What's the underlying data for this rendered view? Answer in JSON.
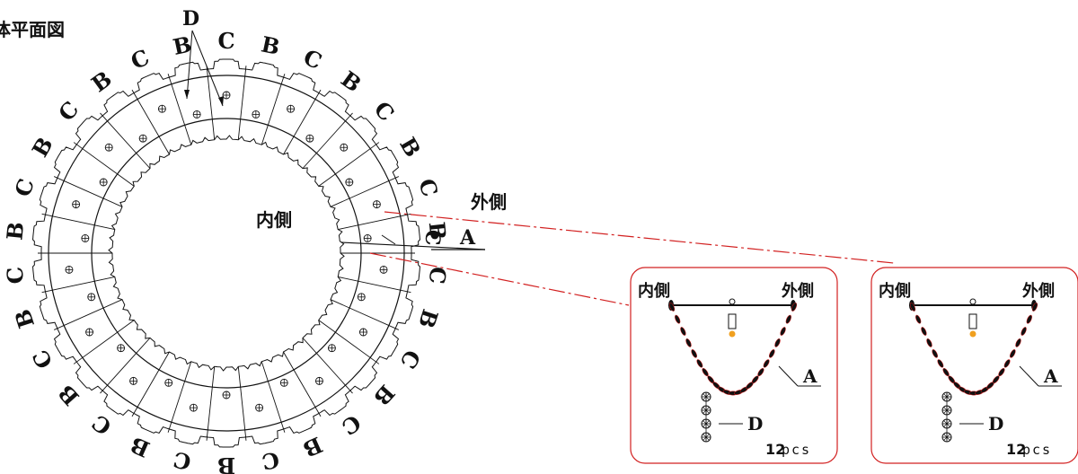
{
  "title": "体平面図",
  "center_label": "内側",
  "outer_label": "外側",
  "ring_labels": [
    "B",
    "C",
    "B",
    "C",
    "B",
    "C",
    "B",
    "C",
    "B",
    "C",
    "B",
    "C",
    "B",
    "C",
    "B",
    "C",
    "B",
    "C",
    "B",
    "C",
    "B",
    "C",
    "B",
    "C",
    "B",
    "C",
    "B",
    "C",
    "B",
    "C"
  ],
  "callout_A": "A",
  "callout_C": "C",
  "callout_D": "D",
  "callout_D_top": "D",
  "details": [
    {
      "inner_label": "内側",
      "outer_label": "外側",
      "label_A": "A",
      "label_D": "D",
      "count_number": "12",
      "count_unit": "pcs"
    },
    {
      "inner_label": "内側",
      "outer_label": "外側",
      "label_A": "A",
      "label_D": "D",
      "count_number": "12",
      "count_unit": "pcs"
    }
  ],
  "colors": {
    "line": "#111111",
    "leader": "#d22020",
    "panel_border": "#d22020",
    "accent_dot": "#f0a020"
  }
}
